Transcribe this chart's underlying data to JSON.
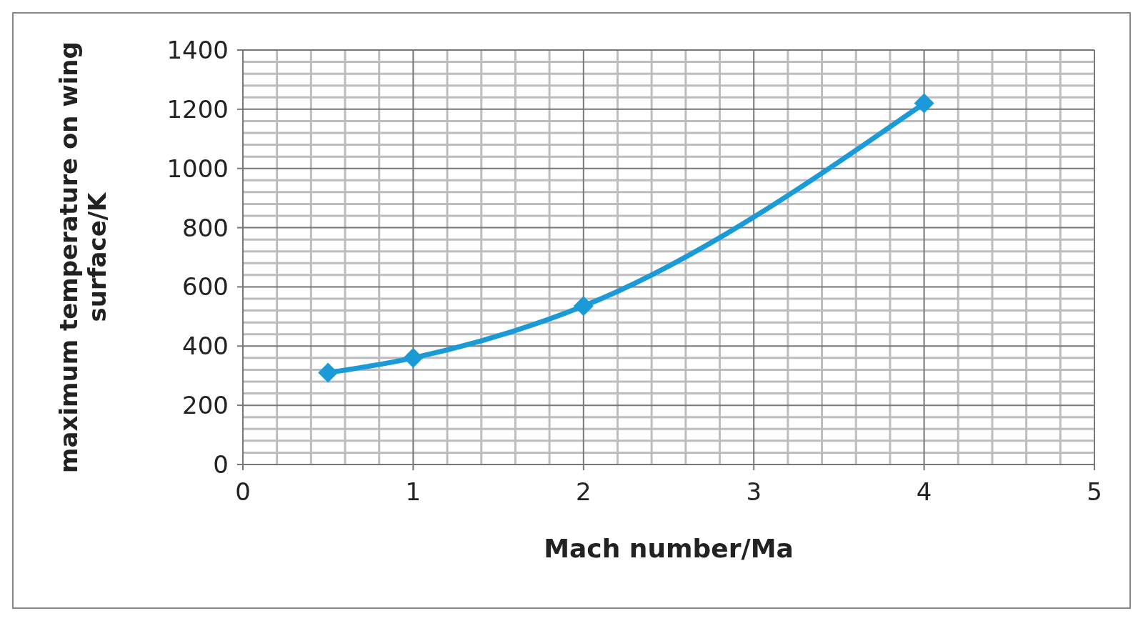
{
  "chart_data": {
    "type": "line",
    "xlabel": "Mach number/Ma",
    "ylabel": "maximum temperature on wing surface/K",
    "x": [
      0.5,
      1,
      2,
      4
    ],
    "series": [
      {
        "color": "#1a9bd7",
        "values": [
          310,
          360,
          535,
          1220
        ]
      }
    ],
    "xlim": [
      0,
      5
    ],
    "xticks": [
      0,
      1,
      2,
      3,
      4,
      5
    ],
    "ylim": [
      0,
      1400
    ],
    "yticks": [
      0,
      200,
      400,
      600,
      800,
      1000,
      1200,
      1400
    ],
    "grid": true,
    "marker": "diamond",
    "line_style": "solid"
  }
}
